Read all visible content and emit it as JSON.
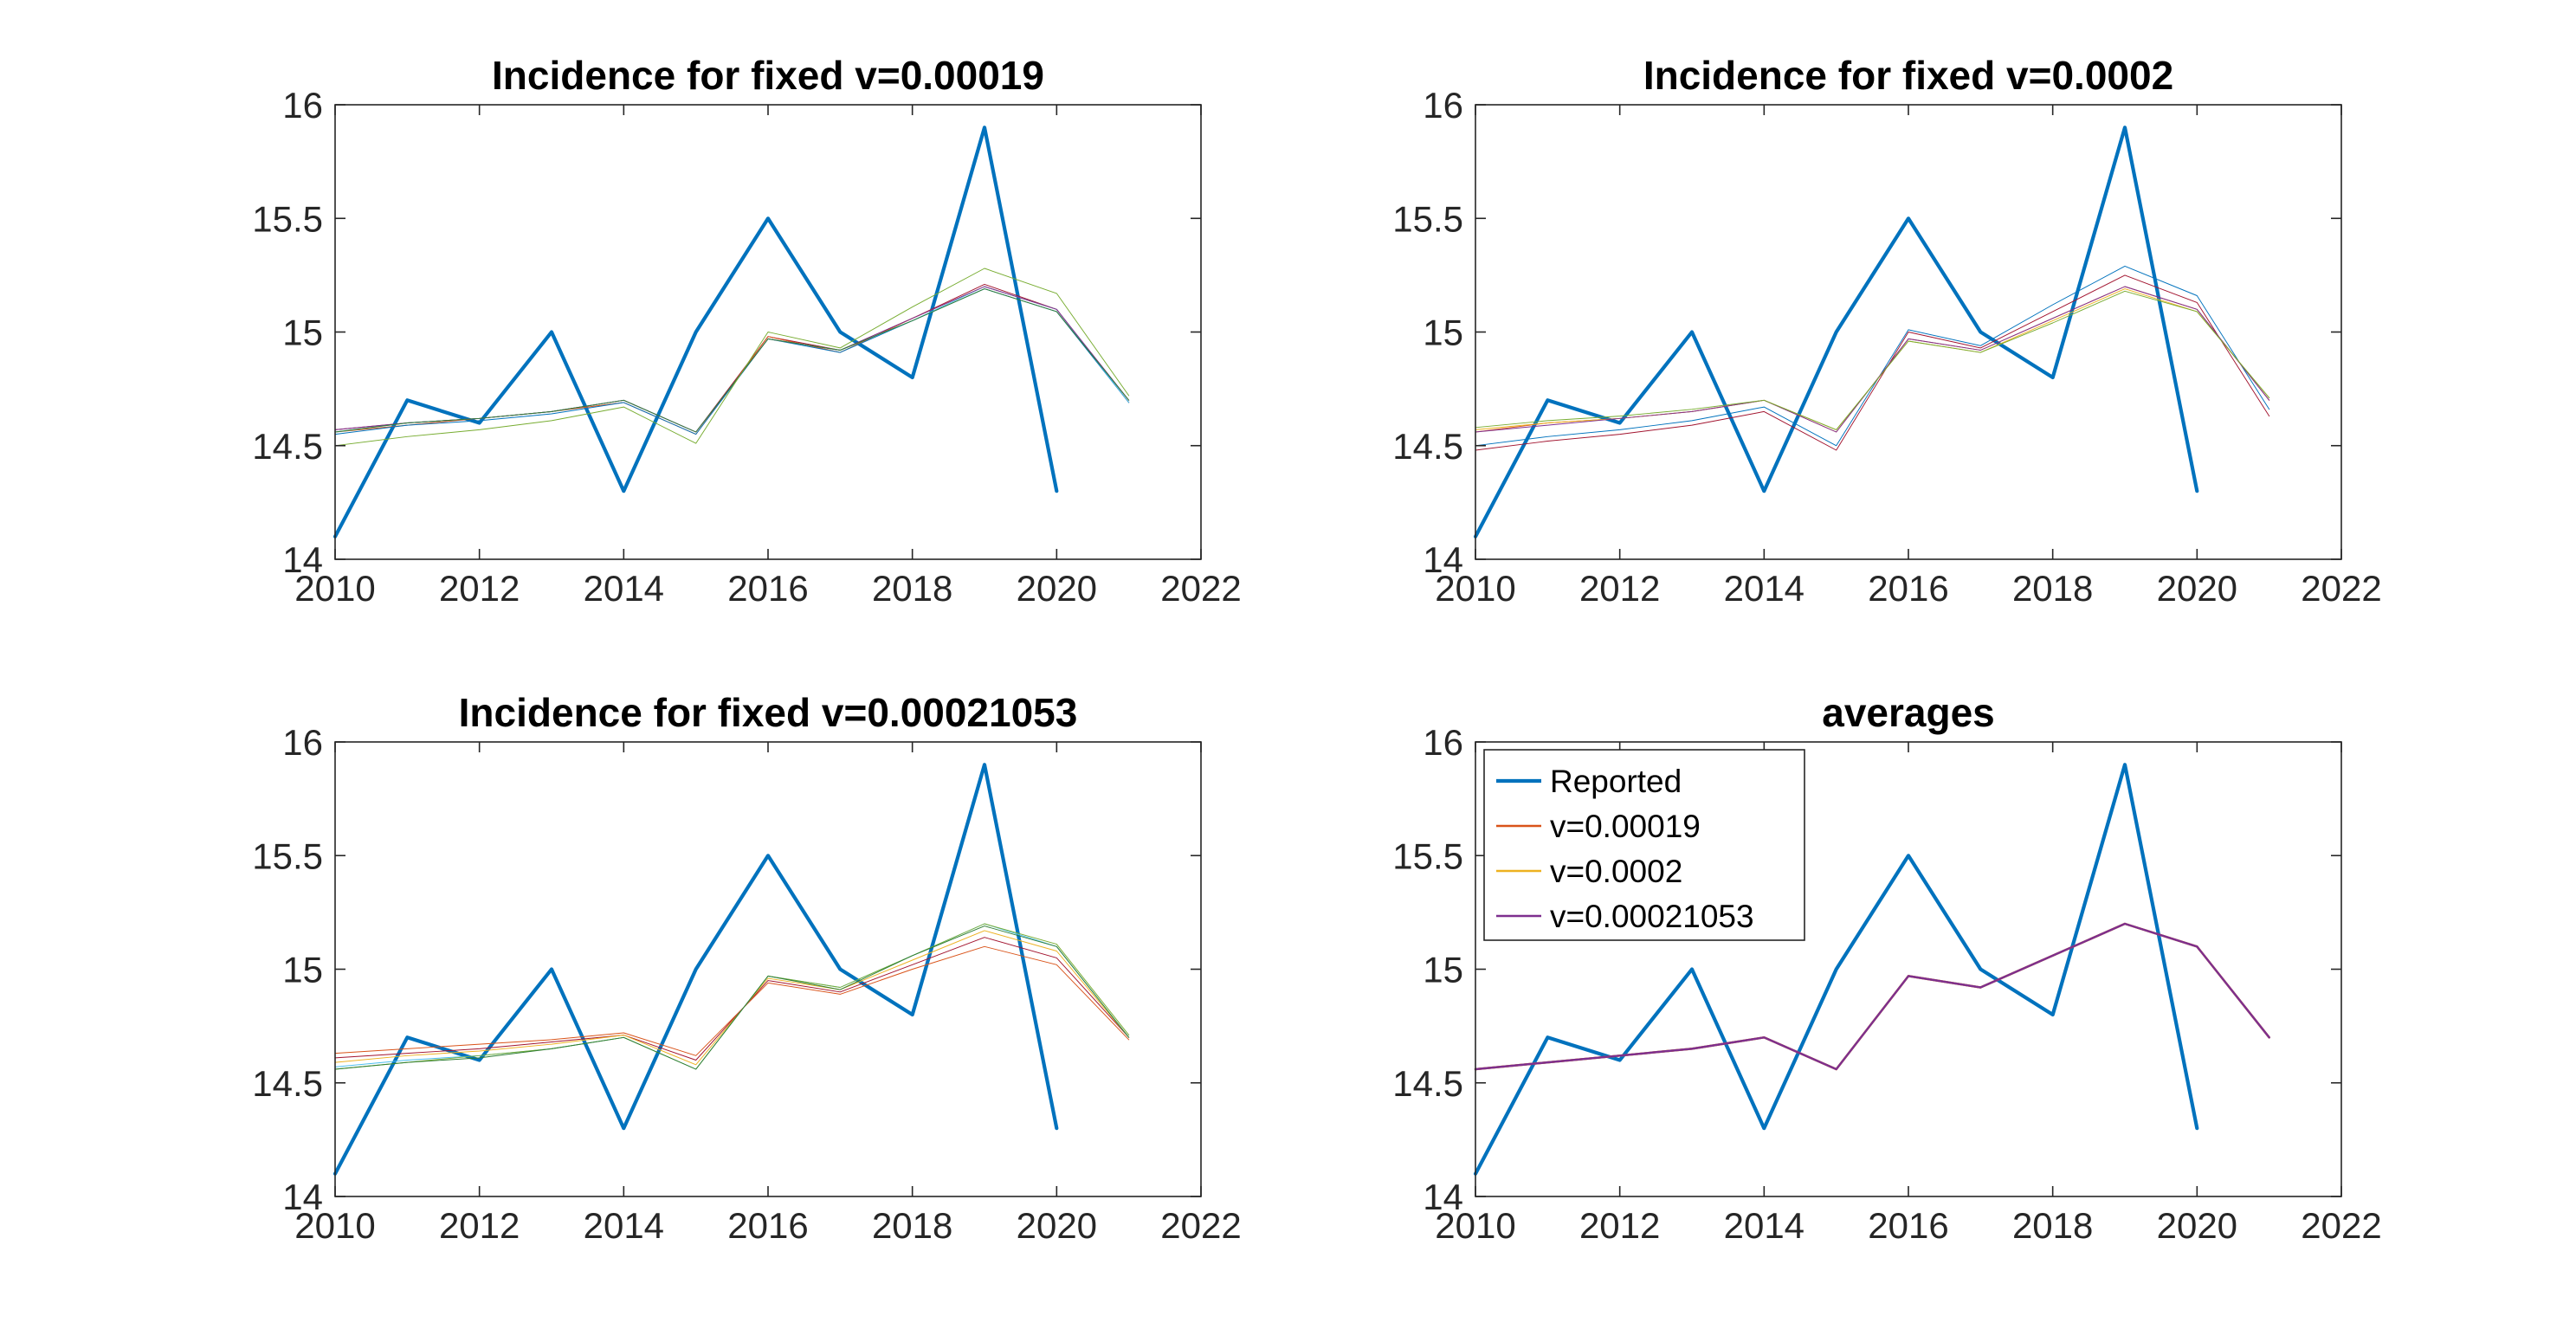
{
  "chart_data": [
    {
      "type": "line",
      "title": "Incidence for fixed v=0.00019",
      "xlim": [
        2010,
        2022
      ],
      "ylim": [
        14,
        16
      ],
      "xticks": [
        "2010",
        "2012",
        "2014",
        "2016",
        "2018",
        "2020",
        "2022"
      ],
      "yticks": [
        "14",
        "14.5",
        "15",
        "15.5",
        "16"
      ],
      "grid": false,
      "series": [
        {
          "color": "#0072BD",
          "width": 2.2,
          "x": [
            2010,
            2011,
            2012,
            2013,
            2014,
            2015,
            2016,
            2017,
            2018,
            2019,
            2020
          ],
          "y": [
            14.1,
            14.7,
            14.6,
            15.0,
            14.3,
            15.0,
            15.5,
            15.0,
            14.8,
            15.9,
            14.3
          ]
        },
        {
          "color": "#A2142F",
          "width": 0.5,
          "x": [
            2010,
            2011,
            2012,
            2013,
            2014,
            2015,
            2016,
            2017,
            2018,
            2019,
            2020,
            2021
          ],
          "y": [
            14.57,
            14.6,
            14.62,
            14.65,
            14.7,
            14.56,
            14.98,
            14.92,
            15.06,
            15.21,
            15.1,
            14.69
          ]
        },
        {
          "color": "#D95319",
          "width": 0.5,
          "x": [
            2010,
            2011,
            2012,
            2013,
            2014,
            2015,
            2016,
            2017,
            2018,
            2019,
            2020,
            2021
          ],
          "y": [
            14.56,
            14.59,
            14.62,
            14.65,
            14.69,
            14.55,
            14.98,
            14.91,
            15.06,
            15.2,
            15.1,
            14.69
          ]
        },
        {
          "color": "#0072BD",
          "width": 0.5,
          "x": [
            2010,
            2011,
            2012,
            2013,
            2014,
            2015,
            2016,
            2017,
            2018,
            2019,
            2020,
            2021
          ],
          "y": [
            14.55,
            14.59,
            14.61,
            14.64,
            14.69,
            14.55,
            14.97,
            14.91,
            15.05,
            15.19,
            15.09,
            14.69
          ]
        },
        {
          "color": "#4DBEEE",
          "width": 0.5,
          "x": [
            2010,
            2011,
            2012,
            2013,
            2014,
            2015,
            2016,
            2017,
            2018,
            2019,
            2020,
            2021
          ],
          "y": [
            14.56,
            14.6,
            14.62,
            14.65,
            14.7,
            14.56,
            14.97,
            14.92,
            15.05,
            15.2,
            15.1,
            14.69
          ]
        },
        {
          "color": "#7E2F8E",
          "width": 0.5,
          "x": [
            2010,
            2011,
            2012,
            2013,
            2014,
            2015,
            2016,
            2017,
            2018,
            2019,
            2020,
            2021
          ],
          "y": [
            14.57,
            14.6,
            14.62,
            14.65,
            14.7,
            14.56,
            14.97,
            14.92,
            15.06,
            15.2,
            15.1,
            14.7
          ]
        },
        {
          "color": "#2E7D32",
          "width": 0.5,
          "x": [
            2010,
            2011,
            2012,
            2013,
            2014,
            2015,
            2016,
            2017,
            2018,
            2019,
            2020,
            2021
          ],
          "y": [
            14.56,
            14.6,
            14.62,
            14.65,
            14.7,
            14.56,
            14.97,
            14.92,
            15.05,
            15.19,
            15.09,
            14.7
          ]
        },
        {
          "color": "#77AC30",
          "width": 0.5,
          "x": [
            2010,
            2011,
            2012,
            2013,
            2014,
            2015,
            2016,
            2017,
            2018,
            2019,
            2020,
            2021
          ],
          "y": [
            14.5,
            14.54,
            14.57,
            14.61,
            14.67,
            14.51,
            15.0,
            14.93,
            15.11,
            15.28,
            15.17,
            14.72
          ]
        }
      ]
    },
    {
      "type": "line",
      "title": "Incidence for fixed v=0.0002",
      "xlim": [
        2010,
        2022
      ],
      "ylim": [
        14,
        16
      ],
      "xticks": [
        "2010",
        "2012",
        "2014",
        "2016",
        "2018",
        "2020",
        "2022"
      ],
      "yticks": [
        "14",
        "14.5",
        "15",
        "15.5",
        "16"
      ],
      "grid": false,
      "series": [
        {
          "color": "#0072BD",
          "width": 2.2,
          "x": [
            2010,
            2011,
            2012,
            2013,
            2014,
            2015,
            2016,
            2017,
            2018,
            2019,
            2020
          ],
          "y": [
            14.1,
            14.7,
            14.6,
            15.0,
            14.3,
            15.0,
            15.5,
            15.0,
            14.8,
            15.9,
            14.3
          ]
        },
        {
          "color": "#A2142F",
          "width": 0.5,
          "x": [
            2010,
            2011,
            2012,
            2013,
            2014,
            2015,
            2016,
            2017,
            2018,
            2019,
            2020,
            2021
          ],
          "y": [
            14.48,
            14.52,
            14.55,
            14.59,
            14.65,
            14.48,
            15.0,
            14.93,
            15.09,
            15.25,
            15.13,
            14.63
          ]
        },
        {
          "color": "#0072BD",
          "width": 0.5,
          "x": [
            2010,
            2011,
            2012,
            2013,
            2014,
            2015,
            2016,
            2017,
            2018,
            2019,
            2020,
            2021
          ],
          "y": [
            14.5,
            14.54,
            14.57,
            14.61,
            14.67,
            14.5,
            15.01,
            14.94,
            15.12,
            15.29,
            15.16,
            14.66
          ]
        },
        {
          "color": "#D95319",
          "width": 0.5,
          "x": [
            2010,
            2011,
            2012,
            2013,
            2014,
            2015,
            2016,
            2017,
            2018,
            2019,
            2020,
            2021
          ],
          "y": [
            14.56,
            14.6,
            14.62,
            14.65,
            14.7,
            14.56,
            14.97,
            14.92,
            15.06,
            15.2,
            15.1,
            14.7
          ]
        },
        {
          "color": "#EDB120",
          "width": 0.5,
          "x": [
            2010,
            2011,
            2012,
            2013,
            2014,
            2015,
            2016,
            2017,
            2018,
            2019,
            2020,
            2021
          ],
          "y": [
            14.57,
            14.6,
            14.62,
            14.65,
            14.7,
            14.57,
            14.96,
            14.91,
            15.05,
            15.19,
            15.09,
            14.71
          ]
        },
        {
          "color": "#7E2F8E",
          "width": 0.5,
          "x": [
            2010,
            2011,
            2012,
            2013,
            2014,
            2015,
            2016,
            2017,
            2018,
            2019,
            2020,
            2021
          ],
          "y": [
            14.56,
            14.59,
            14.62,
            14.65,
            14.7,
            14.56,
            14.97,
            14.92,
            15.06,
            15.2,
            15.1,
            14.7
          ]
        },
        {
          "color": "#77AC30",
          "width": 0.5,
          "x": [
            2010,
            2011,
            2012,
            2013,
            2014,
            2015,
            2016,
            2017,
            2018,
            2019,
            2020,
            2021
          ],
          "y": [
            14.58,
            14.61,
            14.63,
            14.66,
            14.7,
            14.57,
            14.96,
            14.91,
            15.04,
            15.18,
            15.09,
            14.71
          ]
        }
      ]
    },
    {
      "type": "line",
      "title": "Incidence for fixed v=0.00021053",
      "xlim": [
        2010,
        2022
      ],
      "ylim": [
        14,
        16
      ],
      "xticks": [
        "2010",
        "2012",
        "2014",
        "2016",
        "2018",
        "2020",
        "2022"
      ],
      "yticks": [
        "14",
        "14.5",
        "15",
        "15.5",
        "16"
      ],
      "grid": false,
      "series": [
        {
          "color": "#0072BD",
          "width": 2.2,
          "x": [
            2010,
            2011,
            2012,
            2013,
            2014,
            2015,
            2016,
            2017,
            2018,
            2019,
            2020
          ],
          "y": [
            14.1,
            14.7,
            14.6,
            15.0,
            14.3,
            15.0,
            15.5,
            15.0,
            14.8,
            15.9,
            14.3
          ]
        },
        {
          "color": "#D95319",
          "width": 0.5,
          "x": [
            2010,
            2011,
            2012,
            2013,
            2014,
            2015,
            2016,
            2017,
            2018,
            2019,
            2020,
            2021
          ],
          "y": [
            14.63,
            14.65,
            14.67,
            14.69,
            14.72,
            14.62,
            14.94,
            14.89,
            15.0,
            15.1,
            15.02,
            14.69
          ]
        },
        {
          "color": "#A2142F",
          "width": 0.5,
          "x": [
            2010,
            2011,
            2012,
            2013,
            2014,
            2015,
            2016,
            2017,
            2018,
            2019,
            2020,
            2021
          ],
          "y": [
            14.61,
            14.63,
            14.65,
            14.68,
            14.71,
            14.6,
            14.95,
            14.9,
            15.02,
            15.14,
            15.05,
            14.7
          ]
        },
        {
          "color": "#EDB120",
          "width": 0.5,
          "x": [
            2010,
            2011,
            2012,
            2013,
            2014,
            2015,
            2016,
            2017,
            2018,
            2019,
            2020,
            2021
          ],
          "y": [
            14.59,
            14.62,
            14.64,
            14.67,
            14.71,
            14.58,
            14.96,
            14.91,
            15.04,
            15.17,
            15.08,
            14.7
          ]
        },
        {
          "color": "#4DBEEE",
          "width": 0.5,
          "x": [
            2010,
            2011,
            2012,
            2013,
            2014,
            2015,
            2016,
            2017,
            2018,
            2019,
            2020,
            2021
          ],
          "y": [
            14.57,
            14.6,
            14.62,
            14.65,
            14.7,
            14.56,
            14.97,
            14.92,
            15.06,
            15.2,
            15.1,
            14.7
          ]
        },
        {
          "color": "#77AC30",
          "width": 0.5,
          "x": [
            2010,
            2011,
            2012,
            2013,
            2014,
            2015,
            2016,
            2017,
            2018,
            2019,
            2020,
            2021
          ],
          "y": [
            14.56,
            14.59,
            14.62,
            14.65,
            14.7,
            14.56,
            14.97,
            14.92,
            15.06,
            15.2,
            15.11,
            14.71
          ]
        },
        {
          "color": "#2E7D32",
          "width": 0.5,
          "x": [
            2010,
            2011,
            2012,
            2013,
            2014,
            2015,
            2016,
            2017,
            2018,
            2019,
            2020,
            2021
          ],
          "y": [
            14.56,
            14.59,
            14.61,
            14.65,
            14.7,
            14.56,
            14.97,
            14.91,
            15.06,
            15.19,
            15.1,
            14.7
          ]
        }
      ]
    },
    {
      "type": "line",
      "title": "averages",
      "xlim": [
        2010,
        2022
      ],
      "ylim": [
        14,
        16
      ],
      "xticks": [
        "2010",
        "2012",
        "2014",
        "2016",
        "2018",
        "2020",
        "2022"
      ],
      "yticks": [
        "14",
        "14.5",
        "15",
        "15.5",
        "16"
      ],
      "grid": false,
      "legend": "top-left",
      "series": [
        {
          "name": "Reported",
          "color": "#0072BD",
          "width": 2.2,
          "x": [
            2010,
            2011,
            2012,
            2013,
            2014,
            2015,
            2016,
            2017,
            2018,
            2019,
            2020
          ],
          "y": [
            14.1,
            14.7,
            14.6,
            15.0,
            14.3,
            15.0,
            15.5,
            15.0,
            14.8,
            15.9,
            14.3
          ]
        },
        {
          "name": "v=0.00019",
          "color": "#D95319",
          "width": 1.3,
          "x": [
            2010,
            2011,
            2012,
            2013,
            2014,
            2015,
            2016,
            2017,
            2018,
            2019,
            2020,
            2021
          ],
          "y": [
            14.56,
            14.59,
            14.62,
            14.65,
            14.7,
            14.56,
            14.97,
            14.92,
            15.06,
            15.2,
            15.1,
            14.7
          ]
        },
        {
          "name": "v=0.0002",
          "color": "#EDB120",
          "width": 1.3,
          "x": [
            2010,
            2011,
            2012,
            2013,
            2014,
            2015,
            2016,
            2017,
            2018,
            2019,
            2020,
            2021
          ],
          "y": [
            14.56,
            14.59,
            14.62,
            14.65,
            14.7,
            14.56,
            14.97,
            14.92,
            15.06,
            15.2,
            15.1,
            14.7
          ]
        },
        {
          "name": "v=0.00021053",
          "color": "#7E2F8E",
          "width": 1.3,
          "x": [
            2010,
            2011,
            2012,
            2013,
            2014,
            2015,
            2016,
            2017,
            2018,
            2019,
            2020,
            2021
          ],
          "y": [
            14.56,
            14.59,
            14.62,
            14.65,
            14.7,
            14.56,
            14.97,
            14.92,
            15.06,
            15.2,
            15.1,
            14.7
          ]
        }
      ]
    }
  ]
}
